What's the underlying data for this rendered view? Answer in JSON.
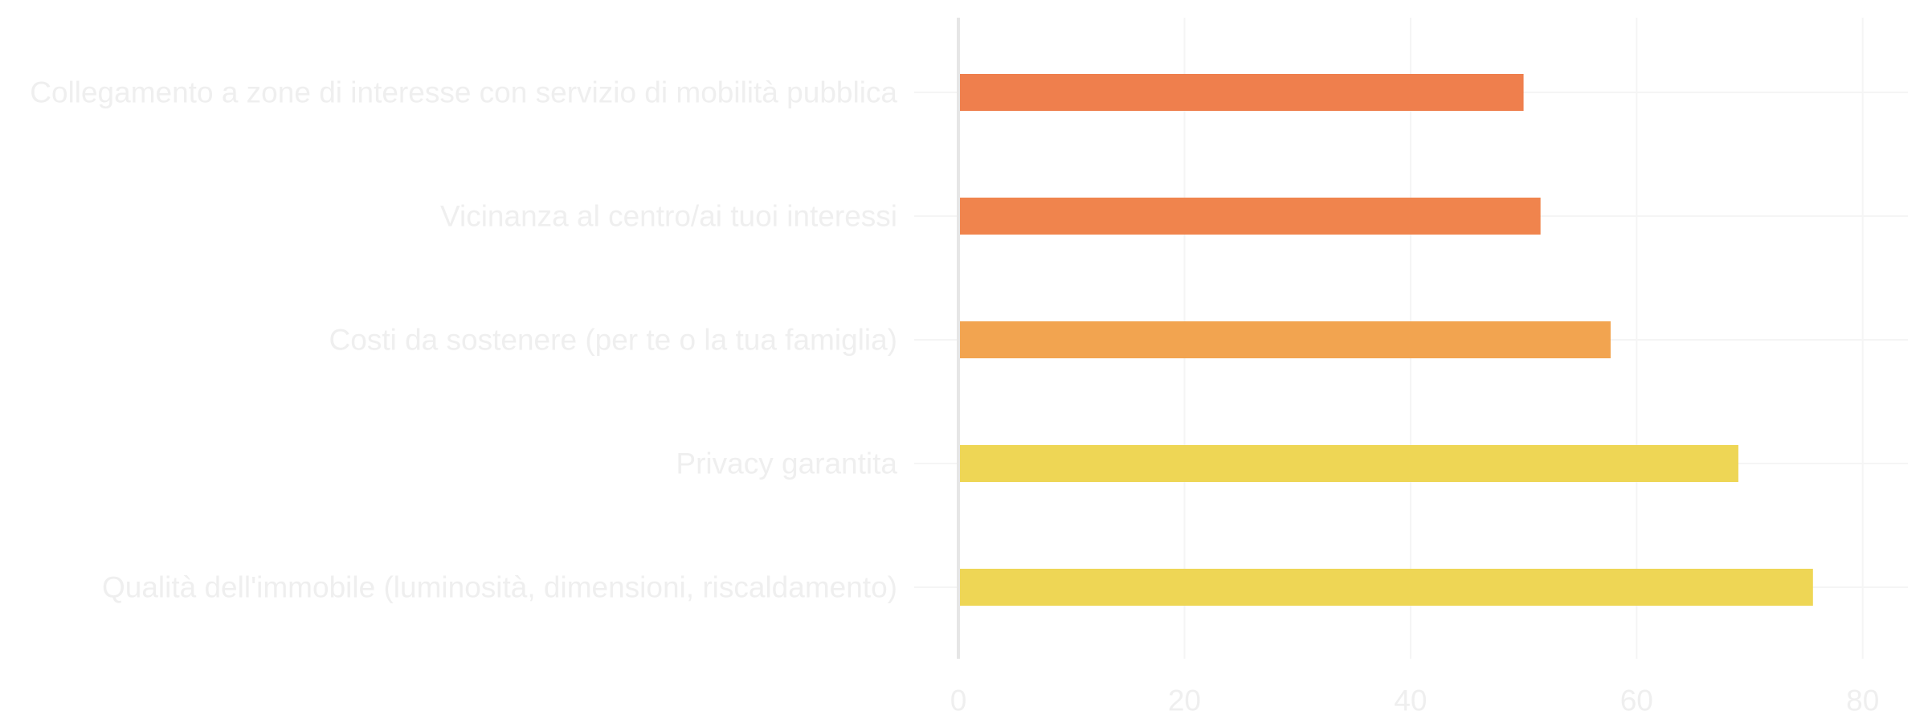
{
  "chart_data": {
    "type": "bar",
    "orientation": "horizontal",
    "title": "",
    "xlabel": "",
    "ylabel": "",
    "categories": [
      "Collegamento a zone di interesse con servizio di mobilità pubblica",
      "Vicinanza al centro/ai tuoi interessi",
      "Costi da sostenere (per te o la tua famiglia)",
      "Privacy garantita",
      "Qualità dell'immobile (luminosità, dimensioni, riscaldamento)"
    ],
    "values": [
      50,
      51.5,
      57.7,
      69,
      75.6
    ],
    "bar_colors": [
      "#ef7f4d",
      "#f0844d",
      "#f2a450",
      "#eed655",
      "#eed655"
    ],
    "xlim": [
      0,
      84
    ],
    "x_ticks": [
      0,
      20,
      40,
      60,
      80
    ],
    "x_tick_labels": [
      "0",
      "20",
      "40",
      "60",
      "80"
    ],
    "grid": true,
    "legend": "none"
  },
  "colors": {
    "text": "#efefef",
    "grid": "#f5f5f5",
    "axis": "#e6e6e6",
    "background": "#ffffff"
  }
}
